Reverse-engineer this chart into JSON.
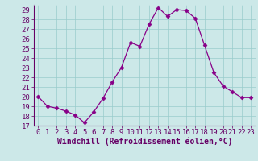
{
  "x": [
    0,
    1,
    2,
    3,
    4,
    5,
    6,
    7,
    8,
    9,
    10,
    11,
    12,
    13,
    14,
    15,
    16,
    17,
    18,
    19,
    20,
    21,
    22,
    23
  ],
  "y": [
    20.0,
    19.0,
    18.8,
    18.5,
    18.1,
    17.3,
    18.4,
    19.8,
    21.5,
    23.0,
    25.6,
    25.2,
    27.5,
    29.2,
    28.3,
    29.0,
    28.9,
    28.1,
    25.3,
    22.5,
    21.1,
    20.5,
    19.9,
    19.9
  ],
  "line_color": "#880088",
  "marker": "D",
  "marker_size": 2.5,
  "bg_color": "#cce8e8",
  "grid_color": "#99cccc",
  "xlabel": "Windchill (Refroidissement éolien,°C)",
  "xlim": [
    -0.5,
    23.5
  ],
  "ylim": [
    17,
    29.5
  ],
  "yticks": [
    17,
    18,
    19,
    20,
    21,
    22,
    23,
    24,
    25,
    26,
    27,
    28,
    29
  ],
  "xticks": [
    0,
    1,
    2,
    3,
    4,
    5,
    6,
    7,
    8,
    9,
    10,
    11,
    12,
    13,
    14,
    15,
    16,
    17,
    18,
    19,
    20,
    21,
    22,
    23
  ],
  "label_color": "#660066",
  "tick_color": "#660066",
  "font_size": 6.5,
  "xlabel_fontsize": 7.0
}
